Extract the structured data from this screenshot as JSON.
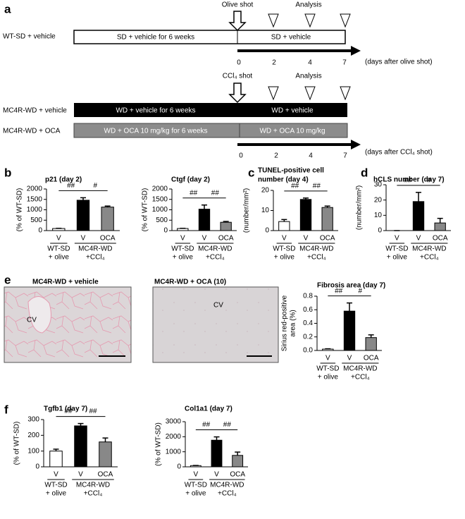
{
  "panel_labels": [
    "a",
    "b",
    "c",
    "d",
    "e",
    "f"
  ],
  "timelines": [
    {
      "shot": "Olive shot",
      "analysis": "Analysis",
      "rows": [
        {
          "label": "WT-SD + vehicle",
          "before": "SD + vehicle for 6 weeks",
          "after": "SD + vehicle"
        }
      ],
      "days": [
        0,
        2,
        4,
        7
      ],
      "axis_label": "(days after olive shot)"
    },
    {
      "shot": "CCl₄ shot",
      "analysis": "Analysis",
      "rows": [
        {
          "label": "MC4R-WD + vehicle",
          "before": "WD + vehicle for 6 weeks",
          "after": "WD + vehicle"
        },
        {
          "label": "MC4R-WD + OCA",
          "before": "WD + OCA 10 mg/kg  for 6 weeks",
          "after": "WD + OCA 10 mg/kg"
        }
      ],
      "days": [
        0,
        2,
        4,
        7
      ],
      "axis_label": "(days after CCl₄ shot)"
    }
  ],
  "images": [
    {
      "title": "MC4R-WD + vehicle",
      "label": "CV"
    },
    {
      "title": "MC4R-WD + OCA (10)",
      "label": "CV"
    }
  ],
  "chart_data": [
    {
      "type": "bar",
      "title": "p21 (day 2)",
      "y_label": "(% of WT-SD)",
      "categories": [
        "V",
        "V",
        "OCA"
      ],
      "groups": [
        [
          "WT-SD",
          "+ olive"
        ],
        [
          "MC4R-WD",
          "+CCl₄"
        ]
      ],
      "values": [
        100,
        1460,
        1130
      ],
      "errors": [
        10,
        120,
        50
      ],
      "colors": [
        "#ffffff",
        "#000000",
        "#888888"
      ],
      "ylim": [
        0,
        2000
      ],
      "yticks": [
        0,
        500,
        1000,
        1500,
        2000
      ],
      "annotations": [
        "##",
        "#"
      ]
    },
    {
      "type": "bar",
      "title": "Ctgf (day 2)",
      "y_label": "(% of WT-SD)",
      "categories": [
        "V",
        "V",
        "OCA"
      ],
      "groups": [
        [
          "WT-SD",
          "+ olive"
        ],
        [
          "MC4R-WD",
          "+CCl₄"
        ]
      ],
      "values": [
        100,
        1030,
        400
      ],
      "errors": [
        10,
        200,
        40
      ],
      "colors": [
        "#ffffff",
        "#000000",
        "#888888"
      ],
      "ylim": [
        0,
        2000
      ],
      "yticks": [
        0,
        500,
        1000,
        1500,
        2000
      ],
      "annotations": [
        "##",
        "##"
      ]
    },
    {
      "type": "bar",
      "title": [
        "TUNEL-positive cell",
        "number (day 4)"
      ],
      "y_label": "(number/mm²)",
      "categories": [
        "V",
        "V",
        "OCA"
      ],
      "groups": [
        [
          "WT-SD",
          "+ olive"
        ],
        [
          "MC4R-WD",
          "+CCl₄"
        ]
      ],
      "values": [
        4.5,
        15.5,
        11.5
      ],
      "errors": [
        1,
        0.7,
        0.7
      ],
      "colors": [
        "#ffffff",
        "#000000",
        "#888888"
      ],
      "ylim": [
        0,
        20
      ],
      "yticks": [
        0,
        10,
        20
      ],
      "annotations": [
        "##",
        "##"
      ]
    },
    {
      "type": "bar",
      "title": "hCLS number (day 7)",
      "y_label": "(number/mm²)",
      "categories": [
        "V",
        "V",
        "OCA"
      ],
      "groups": [
        [
          "WT-SD",
          "+ olive"
        ],
        [
          "MC4R-WD",
          "+CCl₄"
        ]
      ],
      "values": [
        0,
        19,
        5
      ],
      "errors": [
        0,
        6,
        3
      ],
      "colors": [
        "#ffffff",
        "#000000",
        "#888888"
      ],
      "ylim": [
        0,
        30
      ],
      "yticks": [
        0,
        10,
        20,
        30
      ],
      "annotations": [
        "##",
        "#"
      ]
    },
    {
      "type": "bar",
      "title": "Fibrosis area (day 7)",
      "y_label": [
        "Sirius red-positive",
        "area (%)"
      ],
      "categories": [
        "V",
        "V",
        "OCA"
      ],
      "groups": [
        [
          "WT-SD",
          "+ olive"
        ],
        [
          "MC4R-WD",
          "+CCl₄"
        ]
      ],
      "values": [
        0.02,
        0.58,
        0.19
      ],
      "errors": [
        0.005,
        0.12,
        0.04
      ],
      "colors": [
        "#ffffff",
        "#000000",
        "#888888"
      ],
      "ylim": [
        0,
        0.8
      ],
      "yticks": [
        {
          "value": 0,
          "label": "0.0"
        },
        {
          "value": 0.2,
          "label": "0.2"
        },
        {
          "value": 0.4,
          "label": "0.4"
        },
        {
          "value": 0.6,
          "label": "0.6"
        },
        {
          "value": 0.8,
          "label": "0.8"
        }
      ],
      "annotations": [
        "##",
        "#"
      ]
    },
    {
      "type": "bar",
      "title": "Tgfb1 (day 7)",
      "y_label": "(% of WT-SD)",
      "categories": [
        "V",
        "V",
        "OCA"
      ],
      "groups": [
        [
          "WT-SD",
          "+ olive"
        ],
        [
          "MC4R-WD",
          "+CCl₄"
        ]
      ],
      "values": [
        100,
        260,
        158
      ],
      "errors": [
        12,
        15,
        25
      ],
      "colors": [
        "#ffffff",
        "#000000",
        "#888888"
      ],
      "ylim": [
        0,
        300
      ],
      "yticks": [
        0,
        100,
        200,
        300
      ],
      "annotations": [
        "##",
        "##"
      ]
    },
    {
      "type": "bar",
      "title": "Col1a1 (day 7)",
      "y_label": "(% of WT-SD)",
      "categories": [
        "V",
        "V",
        "OCA"
      ],
      "groups": [
        [
          "WT-SD",
          "+ olive"
        ],
        [
          "MC4R-WD",
          "+CCl₄"
        ]
      ],
      "values": [
        80,
        1770,
        760
      ],
      "errors": [
        10,
        220,
        220
      ],
      "colors": [
        "#ffffff",
        "#000000",
        "#888888"
      ],
      "ylim": [
        0,
        3000
      ],
      "yticks": [
        0,
        1000,
        2000,
        3000
      ],
      "annotations": [
        "##",
        "##"
      ]
    }
  ]
}
